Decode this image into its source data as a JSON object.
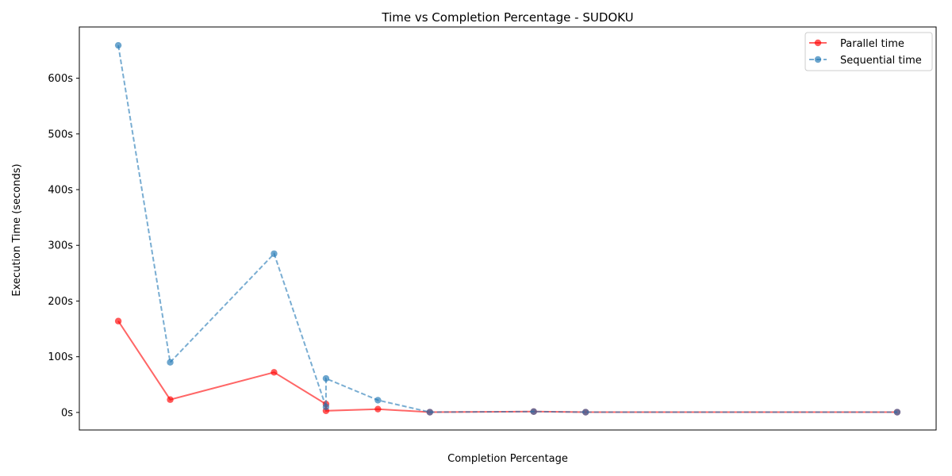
{
  "chart_data": {
    "type": "line",
    "title": "Time vs Completion Percentage - SUDOKU",
    "xlabel": "Completion Percentage",
    "ylabel": "Execution Time (seconds)",
    "x": [
      0,
      1,
      3,
      4,
      4,
      5,
      6,
      8,
      9,
      15
    ],
    "xlim": [
      -0.75,
      15.75
    ],
    "ylim": [
      -31.5,
      692
    ],
    "yticks": [
      0,
      100,
      200,
      300,
      400,
      500,
      600
    ],
    "ytick_labels": [
      "0s",
      "100s",
      "200s",
      "300s",
      "400s",
      "500s",
      "600s"
    ],
    "grid": false,
    "legend_position": "top-right",
    "series": [
      {
        "name": "Parallel time",
        "color": "#ff0000",
        "style": "solid",
        "values": [
          164,
          23,
          72,
          15,
          3,
          6,
          0.5,
          1.5,
          0.5,
          0.5
        ]
      },
      {
        "name": "Sequential time",
        "color": "#1f77b4",
        "style": "dashed",
        "values": [
          659,
          90,
          285,
          10,
          61,
          22,
          0.5,
          1.5,
          0.5,
          0.5
        ]
      }
    ]
  }
}
